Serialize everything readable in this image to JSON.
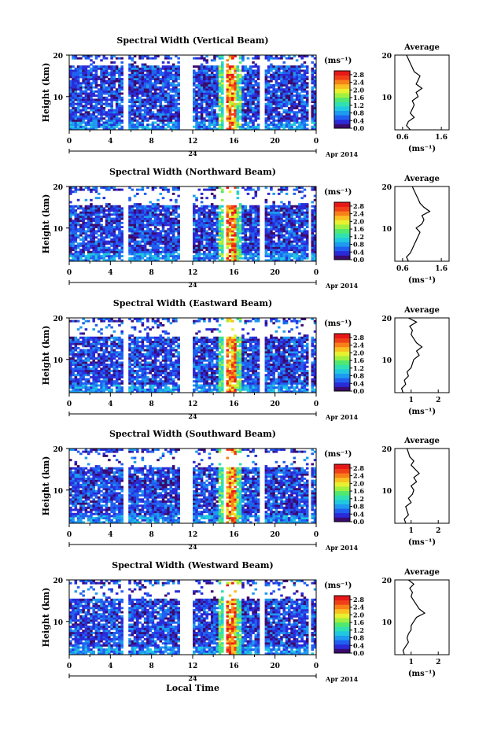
{
  "figure": {
    "xlabel_common": "Local Time"
  },
  "panel_titles": [
    "Spectral Width (Vertical Beam)",
    "Spectral Width (Northward Beam)",
    "Spectral Width (Eastward Beam)",
    "Spectral Width (Southward Beam)",
    "Spectral Width (Westward Beam)"
  ],
  "chart_data": [
    {
      "type": "heatmap",
      "title": "Spectral Width (Vertical Beam)",
      "ylabel": "Height (km)",
      "x_ticks": [
        "0",
        "4",
        "8",
        "12",
        "16",
        "20",
        "0"
      ],
      "date_label": "24",
      "month_label": "Apr 2014",
      "y_ticks": [
        "20",
        "10"
      ],
      "ylim": [
        2,
        20
      ],
      "xlim": [
        0,
        24
      ],
      "colorbar": {
        "label": "(ms⁻¹)",
        "ticks": [
          "2.8",
          "2.4",
          "2.0",
          "1.6",
          "1.2",
          "0.8",
          "0.4",
          "0.0"
        ],
        "range": [
          0,
          3
        ]
      },
      "avg": {
        "title": "Average",
        "xlabel": "(ms⁻¹)",
        "x_ticks": [
          "0.6",
          "1.6"
        ],
        "xlim": [
          0.4,
          1.8
        ],
        "height": [
          2,
          3,
          4,
          5,
          6,
          7,
          8,
          9,
          10,
          11,
          12,
          13,
          14,
          15,
          16,
          17,
          18,
          19,
          20
        ],
        "value": [
          0.8,
          0.7,
          0.75,
          0.9,
          0.8,
          0.85,
          0.9,
          0.85,
          1.0,
          0.95,
          1.1,
          0.95,
          1.0,
          1.05,
          0.9,
          0.85,
          0.8,
          0.75,
          0.7
        ]
      },
      "gaps": [
        [
          5.3,
          5.8
        ],
        [
          10.8,
          11.9
        ],
        [
          14.9,
          15.3
        ],
        [
          18.5,
          18.9
        ],
        [
          23.2,
          23.4
        ]
      ]
    },
    {
      "type": "heatmap",
      "title": "Spectral Width (Northward Beam)",
      "ylabel": "Height (km)",
      "x_ticks": [
        "0",
        "4",
        "8",
        "12",
        "16",
        "20",
        "0"
      ],
      "date_label": "24",
      "month_label": "Apr 2014",
      "y_ticks": [
        "20",
        "10"
      ],
      "ylim": [
        2,
        20
      ],
      "xlim": [
        0,
        24
      ],
      "colorbar": {
        "label": "(ms⁻¹)",
        "ticks": [
          "2.8",
          "2.4",
          "2.0",
          "1.6",
          "1.2",
          "0.8",
          "0.4",
          "0.0"
        ],
        "range": [
          0,
          3
        ]
      },
      "avg": {
        "title": "Average",
        "xlabel": "(ms⁻¹)",
        "x_ticks": [
          "0.6",
          "1.6"
        ],
        "xlim": [
          0.4,
          1.8
        ],
        "height": [
          2,
          3,
          4,
          5,
          6,
          7,
          8,
          9,
          10,
          11,
          12,
          13,
          14,
          15,
          16,
          17,
          18,
          19,
          20
        ],
        "value": [
          0.75,
          0.7,
          0.8,
          0.85,
          0.9,
          0.95,
          1.0,
          1.05,
          0.95,
          1.1,
          1.15,
          1.1,
          1.3,
          1.15,
          1.05,
          1.0,
          0.95,
          0.9,
          0.85
        ]
      },
      "gaps": [
        [
          5.3,
          5.8
        ],
        [
          10.8,
          11.9
        ],
        [
          14.9,
          15.3
        ],
        [
          18.5,
          18.9
        ],
        [
          23.2,
          23.4
        ]
      ]
    },
    {
      "type": "heatmap",
      "title": "Spectral Width (Eastward Beam)",
      "ylabel": "Height (km)",
      "x_ticks": [
        "0",
        "4",
        "8",
        "12",
        "16",
        "20",
        "0"
      ],
      "date_label": "24",
      "month_label": "Apr 2014",
      "y_ticks": [
        "20",
        "10"
      ],
      "ylim": [
        2,
        20
      ],
      "xlim": [
        0,
        24
      ],
      "colorbar": {
        "label": "(ms⁻¹)",
        "ticks": [
          "2.8",
          "2.4",
          "2.0",
          "1.6",
          "1.2",
          "0.8",
          "0.4",
          "0.0"
        ],
        "range": [
          0,
          3
        ]
      },
      "avg": {
        "title": "Average",
        "xlabel": "(ms⁻¹)",
        "x_ticks": [
          "1",
          "2"
        ],
        "xlim": [
          0.4,
          2.4
        ],
        "height": [
          2,
          3,
          4,
          5,
          6,
          7,
          8,
          9,
          10,
          11,
          12,
          13,
          14,
          15,
          16,
          17,
          18,
          19,
          20
        ],
        "value": [
          0.7,
          0.65,
          0.8,
          0.75,
          0.9,
          0.85,
          1.0,
          1.05,
          1.1,
          1.3,
          1.2,
          1.4,
          1.2,
          1.1,
          1.0,
          1.05,
          0.95,
          1.2,
          0.9
        ]
      },
      "gaps": [
        [
          5.3,
          5.8
        ],
        [
          10.8,
          11.9
        ],
        [
          14.9,
          15.3
        ],
        [
          18.5,
          18.9
        ],
        [
          23.2,
          23.4
        ]
      ]
    },
    {
      "type": "heatmap",
      "title": "Spectral Width (Southward Beam)",
      "ylabel": "Height (km)",
      "x_ticks": [
        "0",
        "4",
        "8",
        "12",
        "16",
        "20",
        "0"
      ],
      "date_label": "24",
      "month_label": "Apr 2014",
      "y_ticks": [
        "20",
        "10"
      ],
      "ylim": [
        2,
        20
      ],
      "xlim": [
        0,
        24
      ],
      "colorbar": {
        "label": "(ms⁻¹)",
        "ticks": [
          "2.8",
          "2.4",
          "2.0",
          "1.6",
          "1.2",
          "0.8",
          "0.4",
          "0.0"
        ],
        "range": [
          0,
          3
        ]
      },
      "avg": {
        "title": "Average",
        "xlabel": "(ms⁻¹)",
        "x_ticks": [
          "1",
          "2"
        ],
        "xlim": [
          0.4,
          2.4
        ],
        "height": [
          2,
          3,
          4,
          5,
          6,
          7,
          8,
          9,
          10,
          11,
          12,
          13,
          14,
          15,
          16,
          17,
          18,
          19,
          20
        ],
        "value": [
          0.8,
          0.75,
          0.9,
          0.85,
          0.8,
          1.0,
          0.9,
          1.05,
          1.1,
          1.0,
          1.2,
          1.1,
          1.3,
          1.15,
          1.0,
          1.1,
          0.95,
          0.9,
          0.85
        ]
      },
      "gaps": [
        [
          5.3,
          5.8
        ],
        [
          10.8,
          11.9
        ],
        [
          14.9,
          15.3
        ],
        [
          18.5,
          18.9
        ],
        [
          23.2,
          23.4
        ]
      ]
    },
    {
      "type": "heatmap",
      "title": "Spectral Width (Westward Beam)",
      "ylabel": "Height (km)",
      "x_ticks": [
        "0",
        "4",
        "8",
        "12",
        "16",
        "20",
        "0"
      ],
      "date_label": "24",
      "month_label": "Apr 2014",
      "y_ticks": [
        "20",
        "10"
      ],
      "ylim": [
        2,
        20
      ],
      "xlim": [
        0,
        24
      ],
      "colorbar": {
        "label": "(ms⁻¹)",
        "ticks": [
          "2.8",
          "2.4",
          "2.0",
          "1.6",
          "1.2",
          "0.8",
          "0.4",
          "0.0"
        ],
        "range": [
          0,
          3
        ]
      },
      "avg": {
        "title": "Average",
        "xlabel": "(ms⁻¹)",
        "x_ticks": [
          "1",
          "2"
        ],
        "xlim": [
          0.4,
          2.4
        ],
        "height": [
          2,
          3,
          4,
          5,
          6,
          7,
          8,
          9,
          10,
          11,
          12,
          13,
          14,
          15,
          16,
          17,
          18,
          19,
          20
        ],
        "value": [
          0.75,
          0.7,
          0.8,
          0.9,
          0.85,
          0.9,
          1.0,
          1.0,
          1.1,
          1.2,
          1.5,
          1.3,
          1.2,
          1.1,
          1.0,
          1.05,
          0.95,
          1.1,
          0.9
        ]
      },
      "gaps": [
        [
          5.3,
          5.8
        ],
        [
          10.8,
          11.9
        ],
        [
          14.9,
          15.3
        ],
        [
          18.5,
          18.9
        ],
        [
          23.2,
          23.4
        ]
      ]
    }
  ],
  "colormap": [
    "#3a0a6e",
    "#2a2ad8",
    "#2060f0",
    "#1e9af0",
    "#20c8e0",
    "#30e0b0",
    "#50e870",
    "#a0f040",
    "#e8f030",
    "#f8c020",
    "#f88018",
    "#f04018",
    "#e81818"
  ]
}
